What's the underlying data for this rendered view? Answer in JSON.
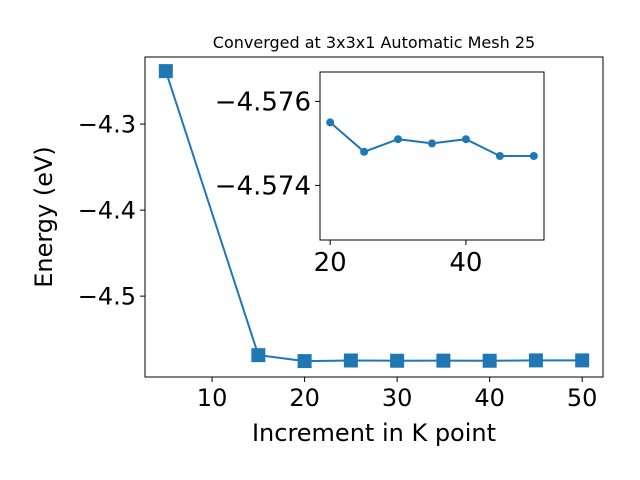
{
  "chart_data": [
    {
      "type": "line",
      "title": "Converged at 3x3x1 Automatic Mesh 25",
      "x_label": "Increment in K point",
      "y_label": "Energy (eV)",
      "x": [
        5,
        15,
        20,
        25,
        30,
        35,
        40,
        45,
        50
      ],
      "series": [
        {
          "color": "#1f77b4",
          "marker": "square",
          "values": [
            -4.2384,
            -4.5686,
            -4.5755,
            -4.5748,
            -4.5751,
            -4.575,
            -4.5751,
            -4.5747,
            -4.5747
          ]
        }
      ],
      "xlim": [
        2.75,
        52.25
      ],
      "ylim": [
        -4.594,
        -4.222
      ],
      "xticks": [
        10,
        20,
        30,
        40,
        50
      ],
      "yticks": [
        {
          "value": -4.3,
          "label": "−4.3"
        },
        {
          "value": -4.4,
          "label": "−4.4"
        },
        {
          "value": -4.5,
          "label": "−4.5"
        }
      ]
    },
    {
      "type": "line",
      "x": [
        20,
        25,
        30,
        35,
        40,
        45,
        50
      ],
      "series": [
        {
          "color": "#1f77b4",
          "marker": "circle",
          "values": [
            -4.5755,
            -4.5748,
            -4.5751,
            -4.575,
            -4.5751,
            -4.5747,
            -4.5747
          ]
        }
      ],
      "xlim": [
        18.5,
        51.5
      ],
      "ylim": [
        -4.5727,
        -4.5767
      ],
      "xticks": [
        20,
        40
      ],
      "yticks": [
        {
          "value": -4.576,
          "label": "−4.576"
        },
        {
          "value": -4.574,
          "label": "−4.574"
        }
      ]
    }
  ]
}
